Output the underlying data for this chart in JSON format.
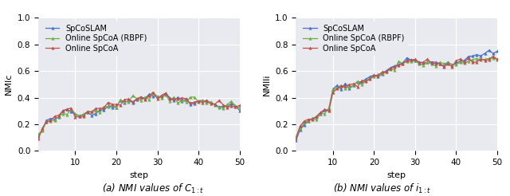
{
  "legend_labels": [
    "SpCoSLAM",
    "Online SpCoA (RBPF)",
    "Online SpCoA"
  ],
  "colors": [
    "#4472c4",
    "#70ad47",
    "#c0504d"
  ],
  "marker": "^",
  "markersize": 2.5,
  "linewidth": 0.9,
  "xlabel": "step",
  "ylabel_left": "NMIc",
  "ylabel_right": "NMIli",
  "caption_left": "(a) NMI values of $C_{1:t}$",
  "caption_right": "(b) NMI values of $i_{1:t}$",
  "xlim": [
    1,
    50
  ],
  "ylim": [
    0.0,
    1.0
  ],
  "xticks": [
    10,
    20,
    30,
    40,
    50
  ],
  "yticks": [
    0.0,
    0.2,
    0.4,
    0.6,
    0.8,
    1.0
  ],
  "background_color": "#e8eaf0",
  "figure_background": "#ffffff"
}
